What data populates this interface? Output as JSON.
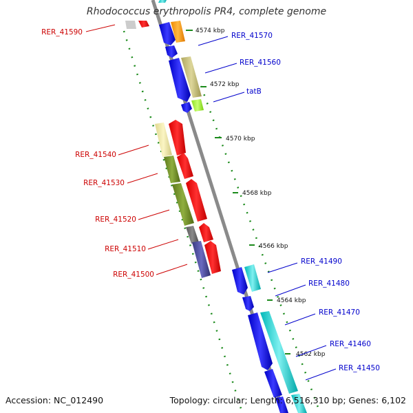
{
  "title": "Rhodococcus erythropolis PR4, complete genome",
  "footer": {
    "accession": "Accession: NC_012490",
    "summary": "Topology: circular; Length: 6,516,310 bp; Genes: 6,102"
  },
  "colors": {
    "backbone": "#8a8a8a",
    "tick": "#1a8a1a",
    "label_forward": "#0000cc",
    "label_reverse": "#cc0000"
  },
  "kbp_labels": [
    "4574 kbp",
    "4572 kbp",
    "4570 kbp",
    "4568 kbp",
    "4566 kbp",
    "4564 kbp",
    "4562 kbp"
  ],
  "gene_labels_right": [
    "RER_41570",
    "RER_41560",
    "tatB",
    "RER_41490",
    "RER_41480",
    "RER_41470",
    "RER_41460",
    "RER_41450"
  ],
  "gene_labels_left": [
    "RER_41590",
    "RER_41540",
    "RER_41530",
    "RER_41520",
    "RER_41510",
    "RER_41500"
  ]
}
